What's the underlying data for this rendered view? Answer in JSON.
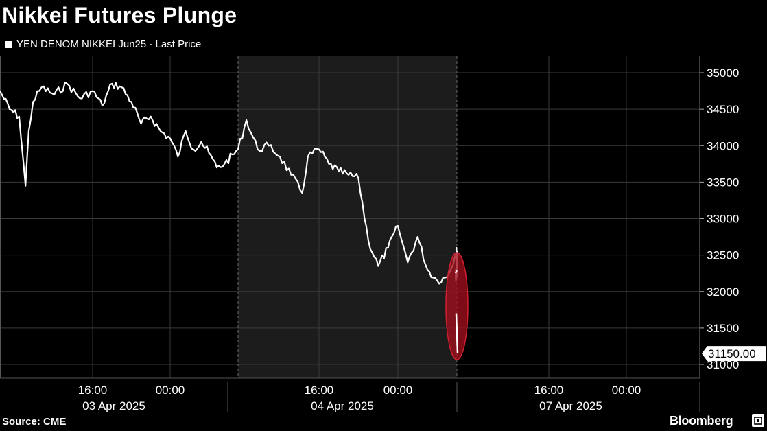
{
  "header": {
    "title": "Nikkei Futures Plunge",
    "legend_label": "YEN DENOM NIKKEI Jun25 - Last Price"
  },
  "footer": {
    "source": "Source: CME",
    "brand": "Bloomberg"
  },
  "colors": {
    "background": "#000000",
    "line": "#ffffff",
    "shaded_session": "#1c1c1c",
    "highlight": "#a0101c"
  },
  "chart_data": {
    "type": "line",
    "title": "Nikkei Futures Plunge",
    "series": [
      {
        "name": "YEN DENOM NIKKEI Jun25 - Last Price",
        "points": [
          [
            "2025-04-03 08:45",
            34750
          ],
          [
            "2025-04-03 09:30",
            34500
          ],
          [
            "2025-04-03 10:15",
            34400
          ],
          [
            "2025-04-03 10:45",
            33450
          ],
          [
            "2025-04-03 11:00",
            34200
          ],
          [
            "2025-04-03 11:20",
            34600
          ],
          [
            "2025-04-03 12:00",
            34800
          ],
          [
            "2025-04-03 13:00",
            34700
          ],
          [
            "2025-04-03 14:00",
            34850
          ],
          [
            "2025-04-03 15:00",
            34650
          ],
          [
            "2025-04-03 16:00",
            34750
          ],
          [
            "2025-04-03 17:00",
            34550
          ],
          [
            "2025-04-03 18:00",
            34850
          ],
          [
            "2025-04-03 19:00",
            34800
          ],
          [
            "2025-04-03 20:00",
            34600
          ],
          [
            "2025-04-03 21:00",
            34300
          ],
          [
            "2025-04-03 22:00",
            34400
          ],
          [
            "2025-04-03 23:00",
            34200
          ],
          [
            "2025-04-04 00:00",
            34100
          ],
          [
            "2025-04-04 01:00",
            33850
          ],
          [
            "2025-04-04 02:00",
            34200
          ],
          [
            "2025-04-04 03:00",
            33950
          ],
          [
            "2025-04-04 04:00",
            34050
          ],
          [
            "2025-04-04 05:00",
            33900
          ],
          [
            "2025-04-04 06:00",
            33700
          ],
          [
            "2025-04-04 07:00",
            33750
          ],
          [
            "2025-04-04 08:45",
            33950
          ],
          [
            "2025-04-04 09:30",
            34350
          ],
          [
            "2025-04-04 10:30",
            33950
          ],
          [
            "2025-04-04 11:30",
            34000
          ],
          [
            "2025-04-04 12:30",
            33850
          ],
          [
            "2025-04-04 13:30",
            33600
          ],
          [
            "2025-04-04 14:30",
            33350
          ],
          [
            "2025-04-04 15:00",
            33850
          ],
          [
            "2025-04-04 16:00",
            33950
          ],
          [
            "2025-04-04 17:00",
            33750
          ],
          [
            "2025-04-04 18:00",
            33650
          ],
          [
            "2025-04-04 19:00",
            33600
          ],
          [
            "2025-04-04 20:00",
            33550
          ],
          [
            "2025-04-04 21:00",
            32700
          ],
          [
            "2025-04-04 22:00",
            32350
          ],
          [
            "2025-04-04 23:00",
            32600
          ],
          [
            "2025-04-05 00:00",
            32900
          ],
          [
            "2025-04-05 00:30",
            32650
          ],
          [
            "2025-04-05 01:00",
            32400
          ],
          [
            "2025-04-05 02:00",
            32750
          ],
          [
            "2025-04-05 03:00",
            32300
          ],
          [
            "2025-04-05 04:00",
            32150
          ],
          [
            "2025-04-05 05:00",
            32200
          ],
          [
            "2025-04-05 06:00",
            32550
          ],
          [
            "2025-04-05 06:30",
            32200
          ],
          [
            "2025-04-05 07:00",
            32600
          ],
          [
            "2025-04-05 07:30",
            32200
          ],
          [
            "2025-04-05 08:00",
            32250
          ],
          [
            "2025-04-05 08:30",
            32150
          ],
          [
            "2025-04-05 09:00",
            32300
          ],
          [
            "2025-04-05 09:30",
            32250
          ],
          [
            "2025-04-07 08:00",
            31700
          ],
          [
            "2025-04-07 08:45",
            31150
          ]
        ]
      }
    ],
    "last_value_label": "31150.00",
    "y_ticks": [
      "31000",
      "31500",
      "32000",
      "32500",
      "33000",
      "33500",
      "34000",
      "34500",
      "35000"
    ],
    "ylim": [
      30800,
      35300
    ],
    "x_time_labels": [
      "16:00",
      "00:00",
      "16:00",
      "00:00",
      "16:00",
      "00:00"
    ],
    "x_date_labels": [
      "03 Apr 2025",
      "04 Apr 2025",
      "07 Apr 2025"
    ],
    "shaded_session": [
      "2025-04-04 08:45",
      "2025-04-05 06:00"
    ],
    "highlight": "plunge at open on 07 Apr 2025",
    "grid": true,
    "y_axis_side": "right",
    "legend_position": "top-left"
  }
}
